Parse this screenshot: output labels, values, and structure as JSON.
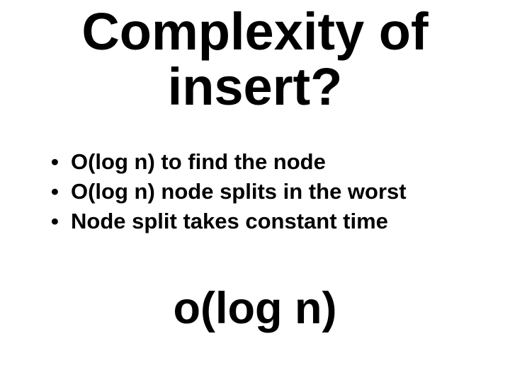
{
  "background_color": "#ffffff",
  "text_color": "#000000",
  "font_family": "Arial",
  "title": {
    "line1": "Complexity of",
    "line2": "insert?",
    "fontsize": 74,
    "weight": "bold",
    "align": "center"
  },
  "bullets": {
    "fontsize": 31,
    "weight": "bold",
    "marker": "•",
    "items": [
      "O(log n) to find the node",
      "O(log n) node splits in the worst",
      "Node split takes constant time"
    ]
  },
  "conclusion": {
    "text": "o(log n)",
    "fontsize": 63,
    "weight": "bold",
    "align": "center"
  }
}
